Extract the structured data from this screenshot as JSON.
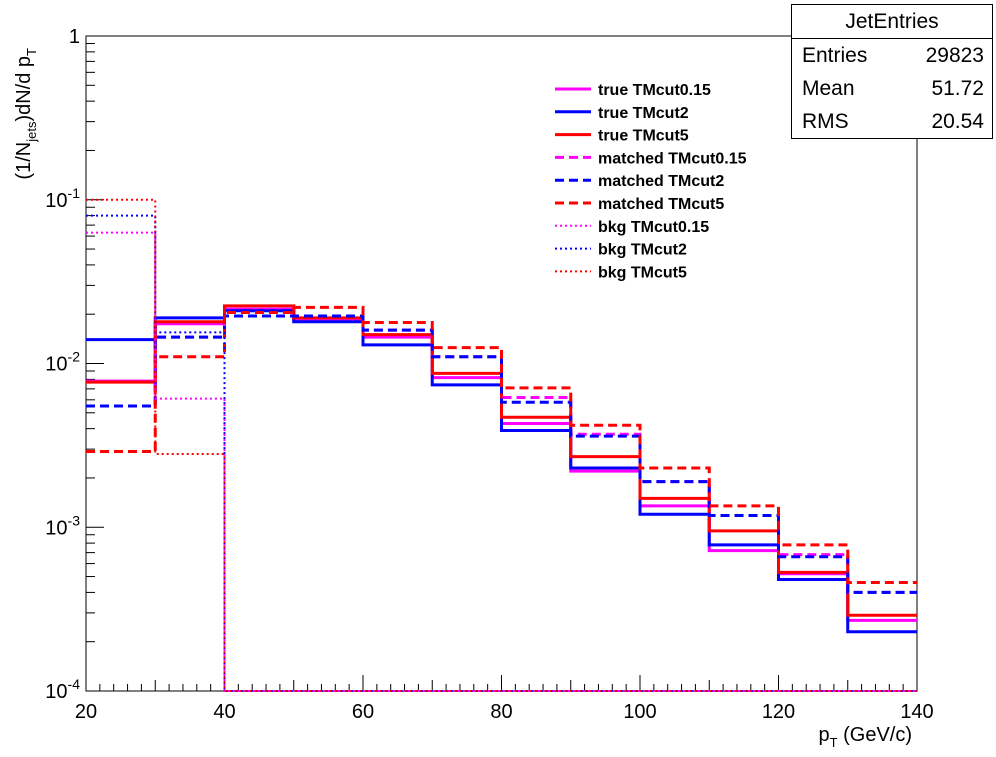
{
  "chart_data": {
    "type": "line",
    "y_scale": "log",
    "xlim": [
      20,
      140
    ],
    "ylim": [
      0.0001,
      1
    ],
    "x_ticks": [
      "20",
      "40",
      "60",
      "80",
      "100",
      "120",
      "140"
    ],
    "y_ticks": [
      {
        "base": "10",
        "exp": "-4",
        "value": 0.0001
      },
      {
        "base": "10",
        "exp": "-3",
        "value": 0.001
      },
      {
        "base": "10",
        "exp": "-2",
        "value": 0.01
      },
      {
        "base": "10",
        "exp": "-1",
        "value": 0.1
      },
      {
        "base": "1",
        "exp": "",
        "value": 1
      }
    ],
    "xlabel": {
      "main": "p",
      "sub": "T",
      "rest": " (GeV/c)"
    },
    "ylabel": {
      "a": "(1/N",
      "sub": "jets",
      "b": ")dN/d p",
      "sub2": "T"
    },
    "bin_edges": [
      20,
      30,
      40,
      50,
      60,
      70,
      80,
      90,
      100,
      110,
      120,
      130,
      140
    ],
    "series": [
      {
        "name": "true TMcut0.15",
        "color": "#ff00ff",
        "style": "solid",
        "values": [
          0.0078,
          0.0175,
          0.0215,
          0.0185,
          0.0145,
          0.0082,
          0.0043,
          0.0022,
          0.00135,
          0.00072,
          0.00052,
          0.00027
        ]
      },
      {
        "name": "true TMcut2",
        "color": "#0000ff",
        "style": "solid",
        "values": [
          0.014,
          0.019,
          0.021,
          0.018,
          0.013,
          0.0074,
          0.0039,
          0.0023,
          0.0012,
          0.00078,
          0.00048,
          0.00023
        ]
      },
      {
        "name": "true TMcut5",
        "color": "#ff0000",
        "style": "solid",
        "values": [
          0.0077,
          0.018,
          0.0225,
          0.019,
          0.015,
          0.0087,
          0.0047,
          0.0027,
          0.0015,
          0.00095,
          0.00053,
          0.00029
        ]
      },
      {
        "name": "matched TMcut0.15",
        "color": "#ff00ff",
        "style": "dashed",
        "values": [
          0.0055,
          0.0145,
          0.0195,
          0.0195,
          0.016,
          0.011,
          0.0062,
          0.0037,
          0.0019,
          0.00118,
          0.00068,
          0.0004
        ]
      },
      {
        "name": "matched TMcut2",
        "color": "#0000ff",
        "style": "dashed",
        "values": [
          0.0055,
          0.0145,
          0.0195,
          0.0195,
          0.016,
          0.011,
          0.0058,
          0.0036,
          0.0019,
          0.00118,
          0.00066,
          0.0004
        ]
      },
      {
        "name": "matched TMcut5",
        "color": "#ff0000",
        "style": "dashed",
        "values": [
          0.0029,
          0.011,
          0.0205,
          0.022,
          0.0178,
          0.0125,
          0.0071,
          0.0042,
          0.0023,
          0.00135,
          0.00078,
          0.00046
        ]
      },
      {
        "name": "bkg TMcut0.15",
        "color": "#ff00ff",
        "style": "dotted",
        "values": [
          0.063,
          0.0061,
          0.0001,
          0.0001,
          0.0001,
          0.0001,
          0.0001,
          0.0001,
          0.0001,
          0.0001,
          0.0001,
          0.0001
        ]
      },
      {
        "name": "bkg TMcut2",
        "color": "#0000ff",
        "style": "dotted",
        "values": [
          0.08,
          0.0155,
          0.0001,
          0.0001,
          0.0001,
          0.0001,
          0.0001,
          0.0001,
          0.0001,
          0.0001,
          0.0001,
          0.0001
        ]
      },
      {
        "name": "bkg TMcut5",
        "color": "#ff0000",
        "style": "dotted",
        "values": [
          0.1,
          0.0028,
          0.0001,
          0.0001,
          0.0001,
          0.0001,
          0.0001,
          0.0001,
          0.0001,
          0.0001,
          0.0001,
          0.0001
        ]
      }
    ],
    "legend": "upper-center, inside plot"
  },
  "stats": {
    "title": "JetEntries",
    "rows": [
      {
        "label": "Entries",
        "value": "29823"
      },
      {
        "label": "Mean",
        "value": "51.72"
      },
      {
        "label": "RMS",
        "value": "20.54"
      }
    ]
  }
}
